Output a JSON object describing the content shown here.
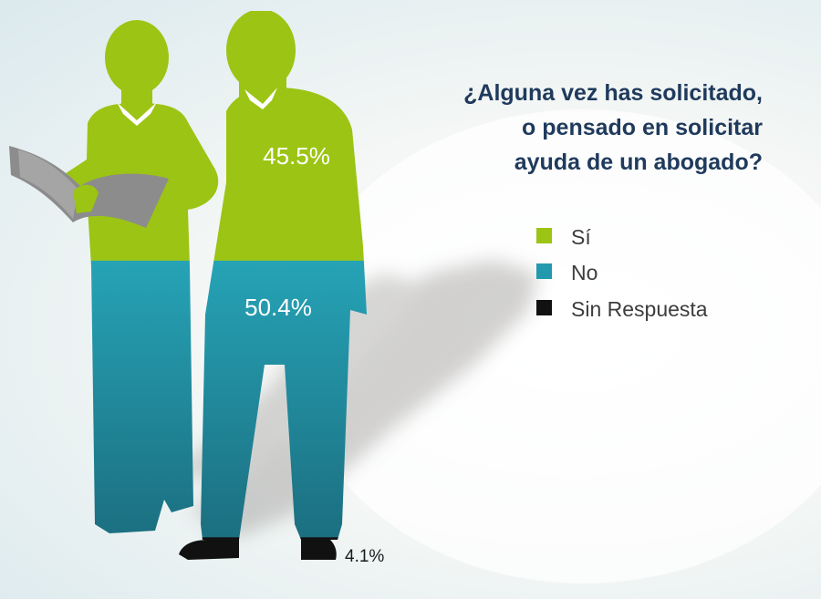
{
  "chart_data": {
    "type": "pie",
    "title_lines": [
      "¿Alguna vez has solicitado,",
      "o pensado en solicitar",
      "ayuda de un abogado?"
    ],
    "categories": [
      "Sí",
      "No",
      "Sin Respuesta"
    ],
    "values": [
      45.5,
      50.4,
      4.1
    ],
    "value_labels": [
      "45.5%",
      "50.4%",
      "4.1%"
    ],
    "colors": [
      "#9cc414",
      "#2399ae",
      "#111111"
    ],
    "legend_position": "right"
  }
}
